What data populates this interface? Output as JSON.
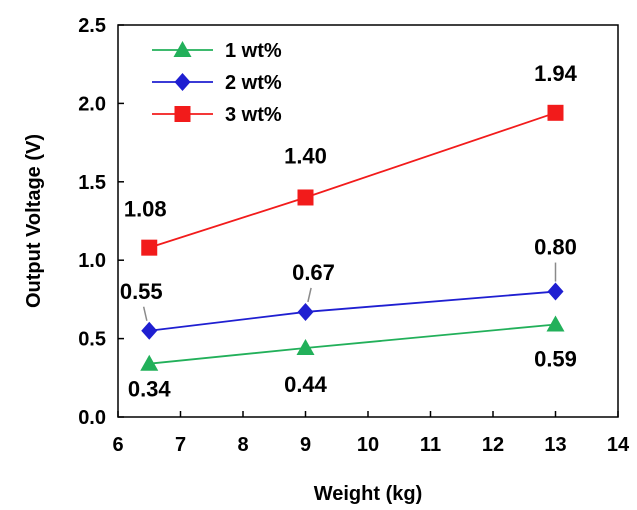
{
  "chart_data": {
    "type": "line",
    "xlabel": "Weight (kg)",
    "ylabel": "Output Voltage (V)",
    "xlim": [
      6,
      14
    ],
    "ylim": [
      0,
      2.5
    ],
    "xticks": [
      6,
      7,
      8,
      9,
      10,
      11,
      12,
      13,
      14
    ],
    "yticks": [
      "0.0",
      "0.5",
      "1.0",
      "1.5",
      "2.0",
      "2.5"
    ],
    "grid": false,
    "legend_position": "top-left",
    "series": [
      {
        "name": "1 wt%",
        "color": "#22b05a",
        "marker": "triangle",
        "points": [
          {
            "x": 6.5,
            "y": 0.34,
            "label": "0.34"
          },
          {
            "x": 9,
            "y": 0.44,
            "label": "0.44"
          },
          {
            "x": 13,
            "y": 0.59,
            "label": "0.59"
          }
        ]
      },
      {
        "name": "2 wt%",
        "color": "#1f1fd1",
        "marker": "diamond",
        "points": [
          {
            "x": 6.5,
            "y": 0.55,
            "label": "0.55"
          },
          {
            "x": 9,
            "y": 0.67,
            "label": "0.67"
          },
          {
            "x": 13,
            "y": 0.8,
            "label": "0.80"
          }
        ]
      },
      {
        "name": "3 wt%",
        "color": "#f21b1b",
        "marker": "square",
        "points": [
          {
            "x": 6.5,
            "y": 1.08,
            "label": "1.08"
          },
          {
            "x": 9,
            "y": 1.4,
            "label": "1.40"
          },
          {
            "x": 13,
            "y": 1.94,
            "label": "1.94"
          }
        ]
      }
    ]
  }
}
